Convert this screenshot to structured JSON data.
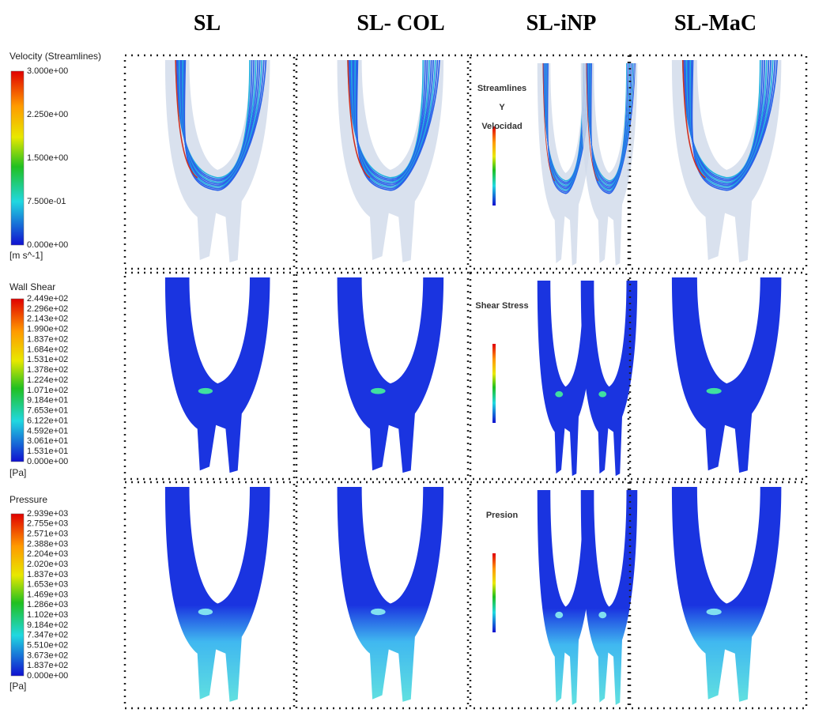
{
  "columns": [
    "SL",
    "SL- COL",
    "SL-iNP",
    "SL-MaC"
  ],
  "legends": [
    {
      "title": "Velocity (Streamlines)",
      "ticks": [
        "3.000e+00",
        "2.250e+00",
        "1.500e+00",
        "7.500e-01",
        "0.000e+00"
      ],
      "unit": "[m s^-1]"
    },
    {
      "title": "Wall Shear",
      "ticks": [
        "2.449e+02",
        "2.296e+02",
        "2.143e+02",
        "1.990e+02",
        "1.837e+02",
        "1.684e+02",
        "1.531e+02",
        "1.378e+02",
        "1.224e+02",
        "1.071e+02",
        "9.184e+01",
        "7.653e+01",
        "6.122e+01",
        "4.592e+01",
        "3.061e+01",
        "1.531e+01",
        "0.000e+00"
      ],
      "unit": "[Pa]"
    },
    {
      "title": "Pressure",
      "ticks": [
        "2.939e+03",
        "2.755e+03",
        "2.571e+03",
        "2.388e+03",
        "2.204e+03",
        "2.020e+03",
        "1.837e+03",
        "1.653e+03",
        "1.469e+03",
        "1.286e+03",
        "1.102e+03",
        "9.184e+02",
        "7.347e+02",
        "5.510e+02",
        "3.673e+02",
        "1.837e+02",
        "0.000e+00"
      ],
      "unit": "[Pa]"
    }
  ],
  "inp_labels": [
    [
      "Streamlines",
      "Y",
      "Velocidad"
    ],
    [
      "Shear Stress"
    ],
    [
      "Presion"
    ]
  ]
}
